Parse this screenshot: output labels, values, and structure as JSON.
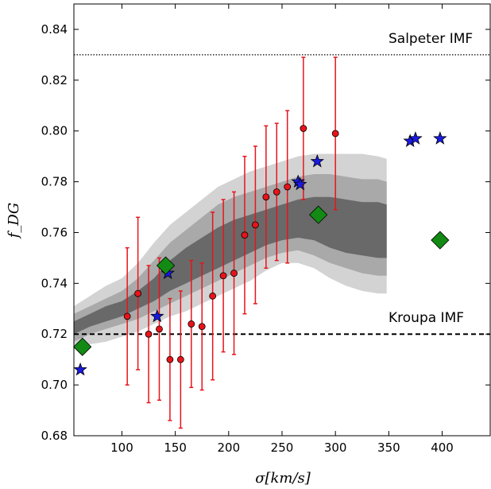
{
  "chart_data": {
    "type": "scatter",
    "xlabel": "σ[km/s]",
    "ylabel": "f_DG",
    "xlim": [
      55,
      445
    ],
    "ylim": [
      0.68,
      0.85
    ],
    "xticks": [
      100,
      150,
      200,
      250,
      300,
      350,
      400
    ],
    "yticks": [
      0.68,
      0.7,
      0.72,
      0.74,
      0.76,
      0.78,
      0.8,
      0.82,
      0.84
    ],
    "reference_lines": [
      {
        "label": "Salpeter IMF",
        "y": 0.83,
        "style": "dotted"
      },
      {
        "label": "Kroupa IMF",
        "y": 0.72,
        "style": "dashed"
      }
    ],
    "bands": {
      "x": [
        55,
        70,
        85,
        100,
        115,
        130,
        145,
        160,
        175,
        190,
        205,
        220,
        235,
        250,
        265,
        280,
        295,
        310,
        325,
        340,
        348
      ],
      "outer_low": [
        0.714,
        0.716,
        0.717,
        0.719,
        0.721,
        0.724,
        0.727,
        0.729,
        0.732,
        0.735,
        0.738,
        0.741,
        0.745,
        0.748,
        0.748,
        0.746,
        0.742,
        0.739,
        0.737,
        0.736,
        0.736
      ],
      "outer_high": [
        0.731,
        0.735,
        0.739,
        0.742,
        0.748,
        0.756,
        0.763,
        0.768,
        0.773,
        0.778,
        0.781,
        0.784,
        0.786,
        0.788,
        0.79,
        0.791,
        0.791,
        0.791,
        0.791,
        0.79,
        0.789
      ],
      "mid_low": [
        0.717,
        0.72,
        0.722,
        0.724,
        0.726,
        0.729,
        0.732,
        0.735,
        0.738,
        0.741,
        0.744,
        0.747,
        0.75,
        0.752,
        0.753,
        0.751,
        0.748,
        0.746,
        0.744,
        0.743,
        0.743
      ],
      "mid_high": [
        0.728,
        0.731,
        0.734,
        0.737,
        0.742,
        0.749,
        0.756,
        0.761,
        0.766,
        0.771,
        0.774,
        0.776,
        0.778,
        0.78,
        0.782,
        0.783,
        0.783,
        0.782,
        0.781,
        0.781,
        0.78
      ],
      "inner_low": [
        0.72,
        0.723,
        0.725,
        0.727,
        0.73,
        0.733,
        0.737,
        0.74,
        0.743,
        0.746,
        0.749,
        0.752,
        0.755,
        0.757,
        0.758,
        0.757,
        0.754,
        0.752,
        0.751,
        0.75,
        0.75
      ],
      "inner_high": [
        0.725,
        0.728,
        0.731,
        0.733,
        0.737,
        0.742,
        0.749,
        0.754,
        0.758,
        0.762,
        0.765,
        0.767,
        0.769,
        0.771,
        0.773,
        0.774,
        0.774,
        0.773,
        0.772,
        0.772,
        0.771
      ]
    },
    "series": [
      {
        "marker": "circle",
        "color": "#e8141a",
        "x": [
          105,
          115,
          125,
          135,
          145,
          155,
          165,
          175,
          185,
          195,
          205,
          215,
          225,
          235,
          245,
          255,
          270,
          300
        ],
        "y": [
          0.727,
          0.736,
          0.72,
          0.722,
          0.71,
          0.71,
          0.724,
          0.723,
          0.735,
          0.743,
          0.744,
          0.759,
          0.763,
          0.774,
          0.776,
          0.778,
          0.801,
          0.799
        ],
        "yerr": [
          0.027,
          0.03,
          0.027,
          0.028,
          0.024,
          0.027,
          0.025,
          0.025,
          0.033,
          0.03,
          0.032,
          0.031,
          0.031,
          0.028,
          0.027,
          0.03,
          0.028,
          0.03
        ]
      },
      {
        "marker": "star",
        "color": "#1a1ae0",
        "x": [
          61,
          133,
          143,
          265,
          267,
          283,
          370,
          375,
          398
        ],
        "y": [
          0.706,
          0.727,
          0.744,
          0.78,
          0.779,
          0.788,
          0.796,
          0.797,
          0.797
        ]
      },
      {
        "marker": "diamond",
        "color": "#138a13",
        "x": [
          63,
          141,
          284,
          398
        ],
        "y": [
          0.715,
          0.747,
          0.767,
          0.757
        ]
      }
    ]
  }
}
